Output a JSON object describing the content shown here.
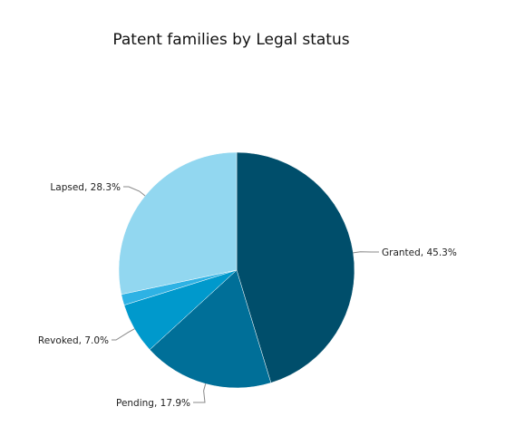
{
  "chart_data": {
    "type": "pie",
    "title": "Patent families by Legal status",
    "slices": [
      {
        "name": "Granted",
        "value": 45.3,
        "label": "Granted, 45.3%",
        "color": "#004e6b",
        "show_label": true
      },
      {
        "name": "Pending",
        "value": 17.9,
        "label": "Pending, 17.9%",
        "color": "#006f98",
        "show_label": true
      },
      {
        "name": "Revoked",
        "value": 7.0,
        "label": "Revoked, 7.0%",
        "color": "#0099cc",
        "show_label": true
      },
      {
        "name": "",
        "value": 1.5,
        "label": "",
        "color": "#2eb2e4",
        "show_label": false
      },
      {
        "name": "Lapsed",
        "value": 28.3,
        "label": "Lapsed, 28.3%",
        "color": "#92d7f0",
        "show_label": true
      }
    ]
  }
}
